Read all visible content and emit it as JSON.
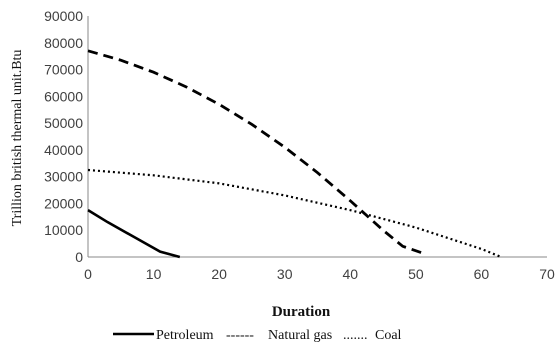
{
  "chart_data": {
    "type": "line",
    "xlabel": "Duration",
    "ylabel": "Trillion british thermal unit.Btu",
    "xlim": [
      0,
      70
    ],
    "ylim": [
      0,
      90000
    ],
    "xticks": [
      "0",
      "10",
      "20",
      "30",
      "40",
      "50",
      "60",
      "70"
    ],
    "yticks": [
      "0",
      "10000",
      "20000",
      "30000",
      "40000",
      "50000",
      "60000",
      "70000",
      "80000",
      "90000"
    ],
    "grid": false,
    "legend_position": "bottom",
    "series": [
      {
        "name": "Petroleum",
        "style": "solid",
        "color": "#000000",
        "x": [
          0,
          3,
          7,
          11,
          14
        ],
        "y": [
          17500,
          13000,
          7500,
          2000,
          0
        ]
      },
      {
        "name": "Natural gas",
        "style": "dashed",
        "color": "#000000",
        "x": [
          0,
          5,
          10,
          15,
          20,
          25,
          30,
          35,
          40,
          45,
          48,
          51
        ],
        "y": [
          77000,
          73500,
          69000,
          63500,
          57000,
          49500,
          41000,
          31500,
          21000,
          10000,
          4000,
          1500
        ]
      },
      {
        "name": "Coal",
        "style": "dotted",
        "color": "#000000",
        "x": [
          0,
          10,
          20,
          30,
          40,
          50,
          55,
          60,
          63
        ],
        "y": [
          32500,
          30500,
          27500,
          23000,
          17500,
          11000,
          7000,
          3000,
          0
        ]
      }
    ],
    "legend_labels": {
      "petroleum": "Petroleum",
      "gas_dashes": "------",
      "natural_gas": "Natural gas",
      "coal_dots": ".......",
      "coal": "Coal"
    }
  }
}
